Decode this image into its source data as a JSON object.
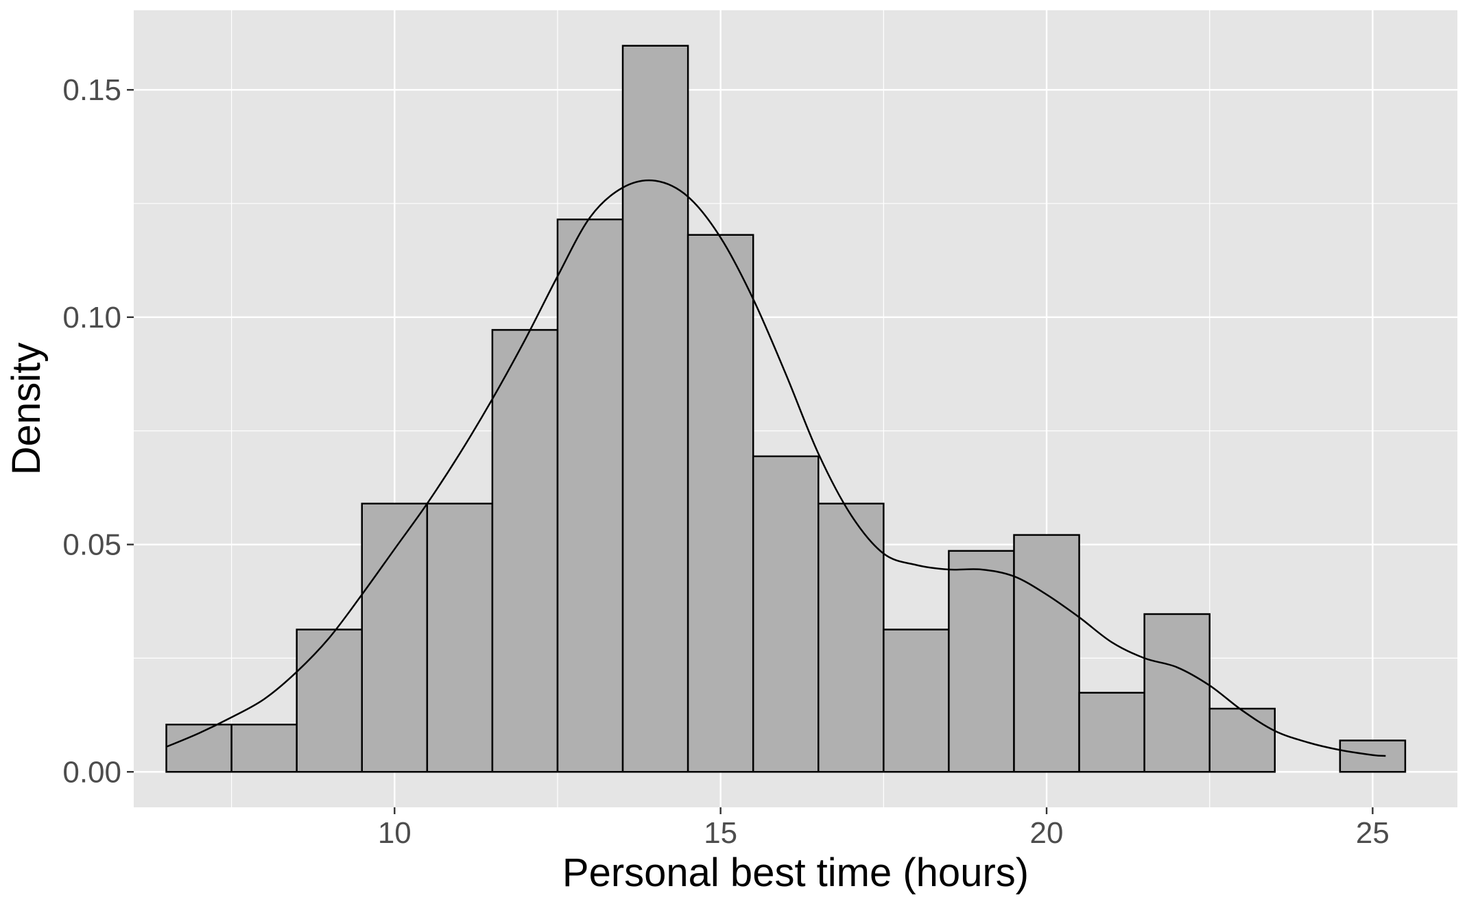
{
  "chart_data": {
    "type": "bar",
    "subtype": "histogram-with-density-curve",
    "title": "",
    "xlabel": "Personal best time (hours)",
    "ylabel": "Density",
    "xlim": [
      6.0,
      26.3
    ],
    "ylim": [
      -0.0078,
      0.1675
    ],
    "x_ticks": [
      10,
      15,
      20,
      25
    ],
    "x_tick_labels": [
      "10",
      "15",
      "20",
      "25"
    ],
    "x_minor_ticks": [
      7.5,
      12.5,
      17.5,
      22.5
    ],
    "y_ticks": [
      0.0,
      0.05,
      0.1,
      0.15
    ],
    "y_tick_labels": [
      "0.00",
      "0.05",
      "0.10",
      "0.15"
    ],
    "y_minor_ticks": [
      0.025,
      0.075,
      0.125
    ],
    "grid": true,
    "bin_width": 1,
    "bins": [
      {
        "x0": 6.5,
        "x1": 7.5,
        "density": 0.0104
      },
      {
        "x0": 7.5,
        "x1": 8.5,
        "density": 0.0104
      },
      {
        "x0": 8.5,
        "x1": 9.5,
        "density": 0.0313
      },
      {
        "x0": 9.5,
        "x1": 10.5,
        "density": 0.059
      },
      {
        "x0": 10.5,
        "x1": 11.5,
        "density": 0.059
      },
      {
        "x0": 11.5,
        "x1": 12.5,
        "density": 0.0972
      },
      {
        "x0": 12.5,
        "x1": 13.5,
        "density": 0.1215
      },
      {
        "x0": 13.5,
        "x1": 14.5,
        "density": 0.1597
      },
      {
        "x0": 14.5,
        "x1": 15.5,
        "density": 0.1181
      },
      {
        "x0": 15.5,
        "x1": 16.5,
        "density": 0.0694
      },
      {
        "x0": 16.5,
        "x1": 17.5,
        "density": 0.059
      },
      {
        "x0": 17.5,
        "x1": 18.5,
        "density": 0.0313
      },
      {
        "x0": 18.5,
        "x1": 19.5,
        "density": 0.0486
      },
      {
        "x0": 19.5,
        "x1": 20.5,
        "density": 0.0521
      },
      {
        "x0": 20.5,
        "x1": 21.5,
        "density": 0.0174
      },
      {
        "x0": 21.5,
        "x1": 22.5,
        "density": 0.0347
      },
      {
        "x0": 22.5,
        "x1": 23.5,
        "density": 0.0139
      },
      {
        "x0": 23.5,
        "x1": 24.5,
        "density": 0.0
      },
      {
        "x0": 24.5,
        "x1": 25.5,
        "density": 0.0069
      }
    ],
    "density_curve": {
      "x": [
        6.5,
        7,
        7.5,
        8,
        8.5,
        9,
        9.5,
        10,
        10.5,
        11,
        11.5,
        12,
        12.5,
        13,
        13.5,
        14,
        14.5,
        15,
        15.5,
        16,
        16.5,
        17,
        17.5,
        18,
        18.5,
        19,
        19.5,
        20,
        20.5,
        21,
        21.5,
        22,
        22.5,
        23,
        23.5,
        24,
        24.5,
        25,
        25.2
      ],
      "y": [
        0.0055,
        0.0085,
        0.012,
        0.016,
        0.022,
        0.0295,
        0.039,
        0.049,
        0.059,
        0.07,
        0.082,
        0.095,
        0.109,
        0.122,
        0.1285,
        0.13,
        0.1265,
        0.1175,
        0.104,
        0.0875,
        0.07,
        0.0565,
        0.048,
        0.0455,
        0.0445,
        0.0445,
        0.043,
        0.039,
        0.034,
        0.0285,
        0.025,
        0.023,
        0.019,
        0.0135,
        0.009,
        0.0065,
        0.0048,
        0.0037,
        0.0035
      ]
    },
    "colors": {
      "panel": "#e5e5e5",
      "grid": "#ffffff",
      "bar_fill": "#b0b0b0",
      "bar_stroke": "#000000",
      "curve": "#000000",
      "tick_text": "#4d4d4d",
      "axis_title": "#000000"
    }
  }
}
